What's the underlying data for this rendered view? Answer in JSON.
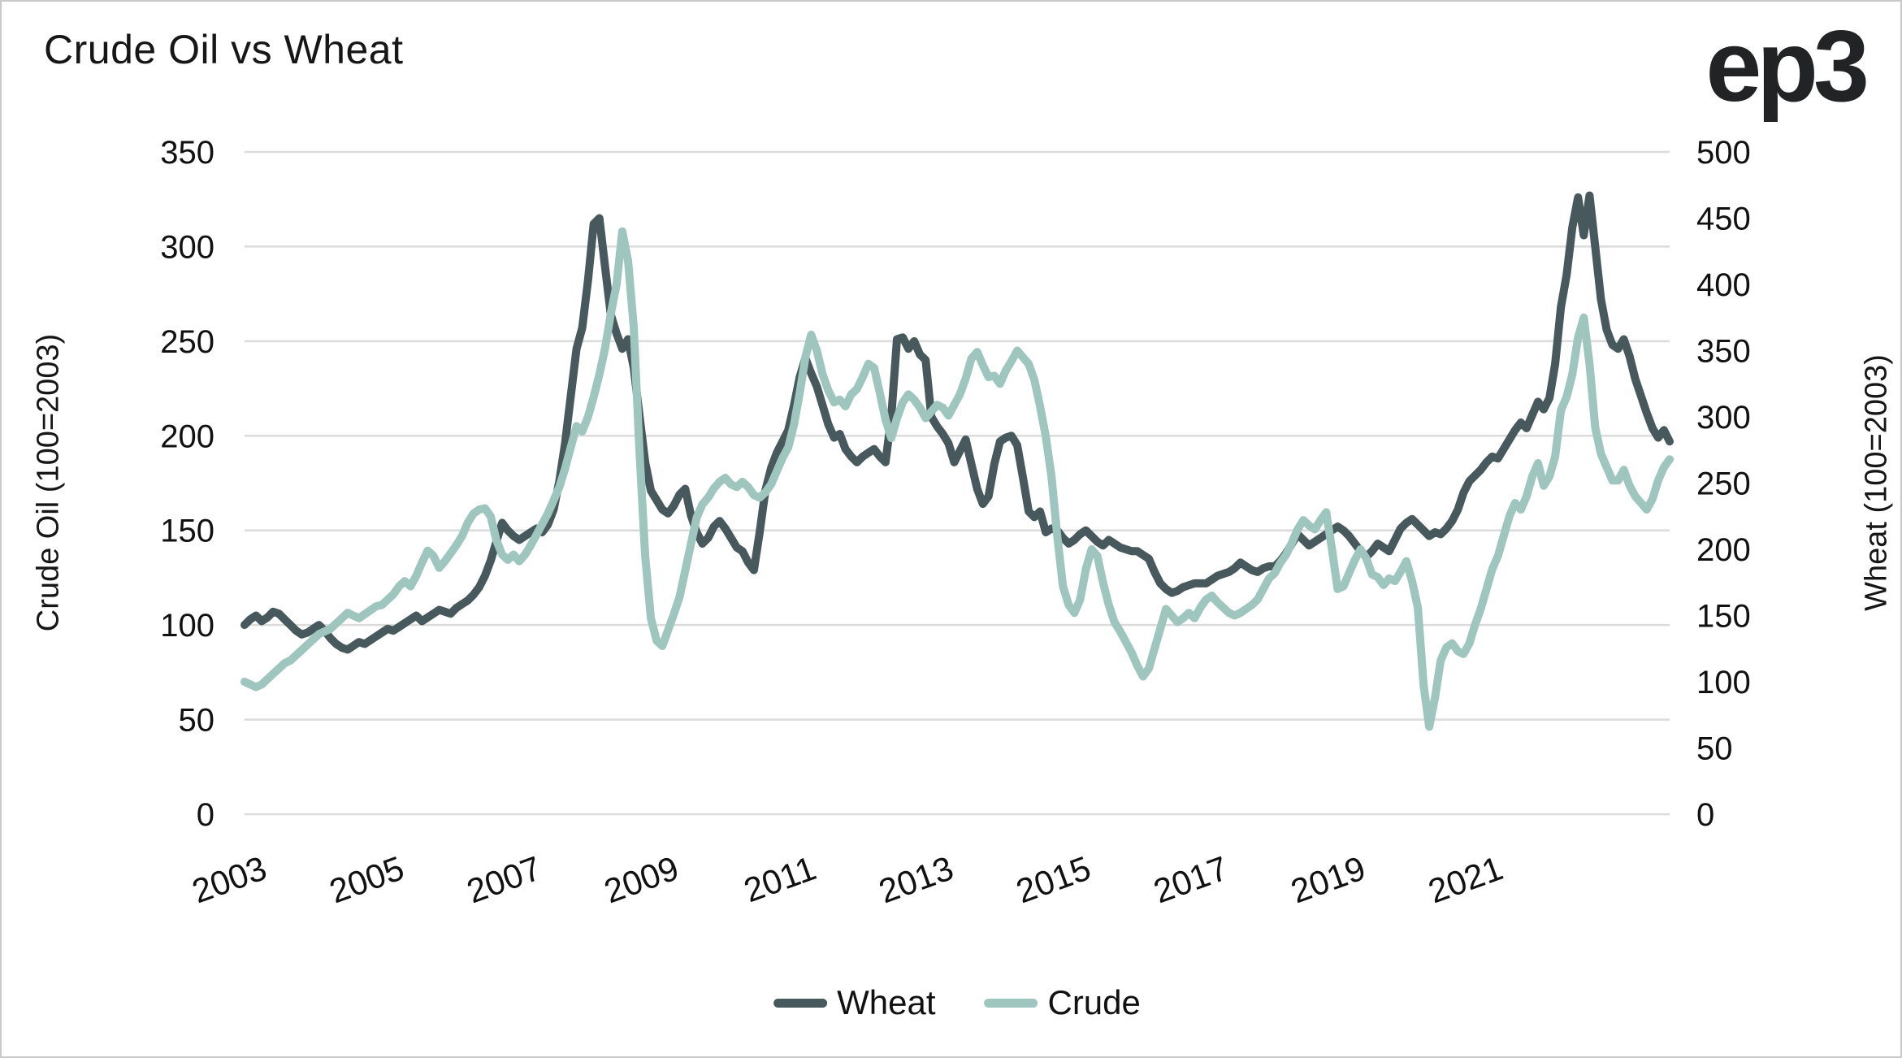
{
  "logo": {
    "text": "ep3"
  },
  "chart_data": {
    "type": "line",
    "title": "Crude Oil vs Wheat",
    "grid": "horizontal",
    "legend_position": "bottom-center",
    "colors": {
      "grid": "#dbdbdb",
      "text": "#111111"
    },
    "x": {
      "start_year": 2003,
      "start_month": 1,
      "frequency": "monthly",
      "tick_labels": [
        "2003",
        "2005",
        "2007",
        "2009",
        "2011",
        "2013",
        "2015",
        "2017",
        "2019",
        "2021"
      ]
    },
    "axes": {
      "left": {
        "label": "Crude Oil (100=2003)",
        "min": 0,
        "max": 350,
        "ticks": [
          0,
          50,
          100,
          150,
          200,
          250,
          300,
          350
        ]
      },
      "right": {
        "label": "Wheat (100=2003)",
        "min": 0,
        "max": 500,
        "ticks": [
          0,
          50,
          100,
          150,
          200,
          250,
          300,
          350,
          400,
          450,
          500
        ]
      }
    },
    "series": [
      {
        "name": "Wheat",
        "color": "#47595C",
        "axis": "left",
        "values": [
          100,
          103,
          105,
          102,
          104,
          107,
          106,
          103,
          100,
          97,
          95,
          96,
          98,
          100,
          97,
          93,
          90,
          88,
          87,
          89,
          91,
          90,
          92,
          94,
          96,
          98,
          97,
          99,
          101,
          103,
          105,
          102,
          104,
          106,
          108,
          107,
          106,
          109,
          111,
          113,
          116,
          120,
          126,
          134,
          144,
          154,
          150,
          147,
          145,
          147,
          149,
          151,
          149,
          153,
          161,
          176,
          196,
          221,
          246,
          257,
          282,
          312,
          315,
          289,
          264,
          254,
          246,
          251,
          236,
          211,
          186,
          171,
          166,
          161,
          159,
          163,
          169,
          172,
          158,
          149,
          143,
          146,
          152,
          155,
          151,
          146,
          141,
          139,
          133,
          129,
          149,
          171,
          183,
          191,
          197,
          203,
          216,
          231,
          241,
          233,
          226,
          216,
          206,
          199,
          201,
          193,
          189,
          186,
          189,
          191,
          193,
          189,
          186,
          210,
          251,
          252,
          246,
          250,
          243,
          240,
          210,
          205,
          201,
          196,
          186,
          192,
          198,
          185,
          172,
          164,
          168,
          185,
          197,
          199,
          200,
          195,
          178,
          160,
          157,
          160,
          149,
          151,
          150,
          146,
          143,
          145,
          148,
          150,
          147,
          144,
          142,
          145,
          143,
          141,
          140,
          139,
          139,
          137,
          135,
          128,
          122,
          119,
          117,
          118,
          120,
          121,
          122,
          122,
          122,
          124,
          126,
          127,
          128,
          130,
          133,
          131,
          129,
          128,
          130,
          131,
          131,
          134,
          138,
          143,
          148,
          145,
          142,
          144,
          146,
          148,
          150,
          152,
          150,
          147,
          143,
          139,
          136,
          139,
          143,
          141,
          139,
          145,
          151,
          154,
          156,
          153,
          150,
          147,
          149,
          148,
          151,
          155,
          161,
          170,
          176,
          179,
          182,
          186,
          189,
          188,
          193,
          198,
          203,
          207,
          204,
          211,
          218,
          214,
          220,
          238,
          268,
          285,
          310,
          326,
          306,
          327,
          300,
          272,
          256,
          248,
          246,
          251,
          242,
          230,
          221,
          212,
          204,
          199,
          203,
          197
        ]
      },
      {
        "name": "Crude",
        "color": "#9EC5BE",
        "axis": "right",
        "values": [
          100,
          98,
          96,
          98,
          102,
          106,
          110,
          114,
          116,
          120,
          124,
          128,
          132,
          136,
          138,
          140,
          144,
          148,
          152,
          150,
          148,
          151,
          154,
          157,
          158,
          162,
          166,
          172,
          176,
          172,
          180,
          190,
          199,
          195,
          186,
          191,
          197,
          203,
          210,
          220,
          227,
          230,
          231,
          225,
          207,
          196,
          192,
          196,
          191,
          196,
          203,
          211,
          219,
          227,
          237,
          247,
          261,
          277,
          293,
          289,
          300,
          315,
          332,
          352,
          378,
          400,
          440,
          418,
          368,
          275,
          195,
          148,
          131,
          127,
          139,
          151,
          164,
          184,
          204,
          224,
          234,
          239,
          246,
          251,
          254,
          249,
          247,
          251,
          247,
          241,
          239,
          243,
          249,
          259,
          269,
          277,
          294,
          318,
          345,
          362,
          350,
          332,
          320,
          311,
          313,
          308,
          317,
          321,
          330,
          340,
          337,
          318,
          298,
          284,
          299,
          311,
          317,
          313,
          307,
          299,
          304,
          309,
          307,
          301,
          309,
          317,
          329,
          344,
          349,
          339,
          330,
          331,
          325,
          335,
          342,
          350,
          345,
          340,
          328,
          308,
          285,
          255,
          210,
          172,
          158,
          152,
          162,
          185,
          200,
          195,
          175,
          158,
          145,
          138,
          130,
          122,
          112,
          104,
          110,
          125,
          140,
          155,
          150,
          145,
          148,
          152,
          148,
          156,
          162,
          165,
          160,
          156,
          152,
          150,
          152,
          155,
          158,
          162,
          170,
          178,
          182,
          190,
          196,
          205,
          215,
          222,
          218,
          215,
          222,
          228,
          200,
          170,
          172,
          182,
          192,
          200,
          193,
          181,
          179,
          173,
          178,
          176,
          183,
          191,
          176,
          156,
          98,
          66,
          88,
          116,
          126,
          129,
          123,
          121,
          129,
          143,
          155,
          170,
          185,
          195,
          210,
          225,
          235,
          230,
          240,
          255,
          265,
          248,
          255,
          270,
          305,
          315,
          332,
          360,
          375,
          340,
          292,
          272,
          262,
          252,
          252,
          260,
          248,
          240,
          235,
          230,
          238,
          252,
          262,
          268
        ]
      }
    ]
  }
}
